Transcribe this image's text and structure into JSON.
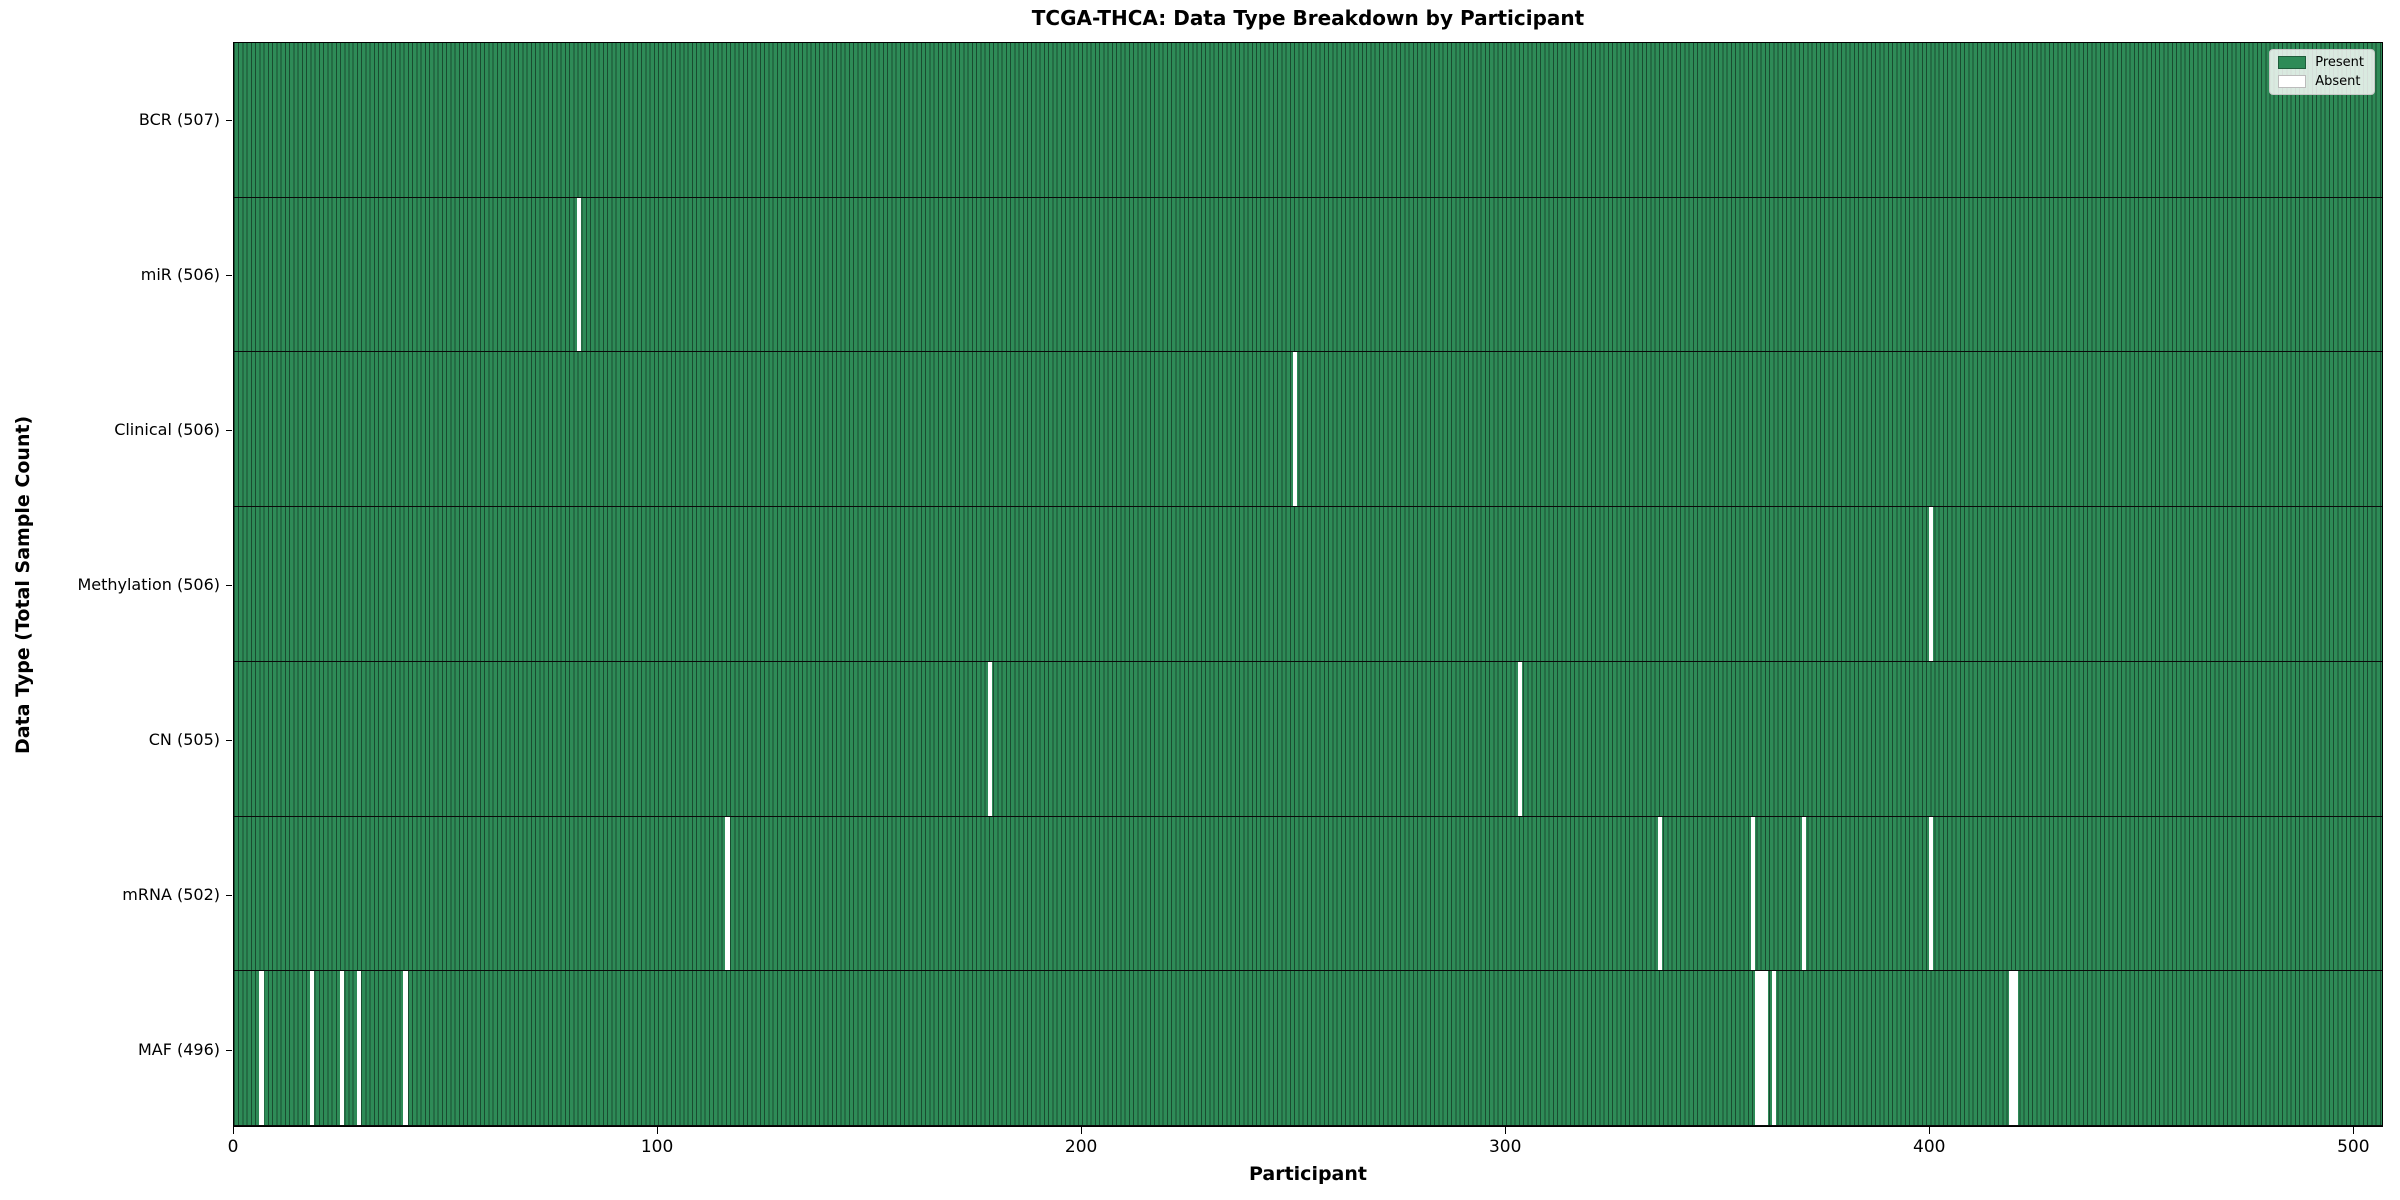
{
  "chart_data": {
    "type": "heatmap",
    "title": "TCGA-THCA: Data Type Breakdown by Participant",
    "xlabel": "Participant",
    "ylabel": "Data Type (Total Sample Count)",
    "total_participants": 507,
    "xlim": [
      0,
      507
    ],
    "x_ticks": [
      0,
      100,
      200,
      300,
      400,
      500
    ],
    "grid": false,
    "legend": {
      "position": "upper right",
      "entries": [
        {
          "label": "Present",
          "color": "#2e8b57"
        },
        {
          "label": "Absent",
          "color": "#ffffff"
        }
      ]
    },
    "colors": {
      "present": "#2e8b57",
      "absent": "#ffffff",
      "bar_edge": "rgba(0,0,0,0.45)",
      "row_separator": "#0a0a0a"
    },
    "rows": [
      {
        "data_type": "BCR",
        "label": "BCR (507)",
        "present_count": 507,
        "absent_participants": []
      },
      {
        "data_type": "miR",
        "label": "miR (506)",
        "present_count": 506,
        "absent_participants": [
          81
        ]
      },
      {
        "data_type": "Clinical",
        "label": "Clinical (506)",
        "present_count": 506,
        "absent_participants": [
          250
        ]
      },
      {
        "data_type": "Methylation",
        "label": "Methylation (506)",
        "present_count": 506,
        "absent_participants": [
          400
        ]
      },
      {
        "data_type": "CN",
        "label": "CN (505)",
        "present_count": 505,
        "absent_participants": [
          178,
          303
        ]
      },
      {
        "data_type": "mRNA",
        "label": "mRNA (502)",
        "present_count": 502,
        "absent_participants": [
          116,
          336,
          358,
          370,
          400
        ]
      },
      {
        "data_type": "MAF",
        "label": "MAF (496)",
        "present_count": 496,
        "absent_participants": [
          6,
          18,
          25,
          29,
          40,
          359,
          360,
          361,
          363,
          419,
          420
        ]
      }
    ]
  }
}
